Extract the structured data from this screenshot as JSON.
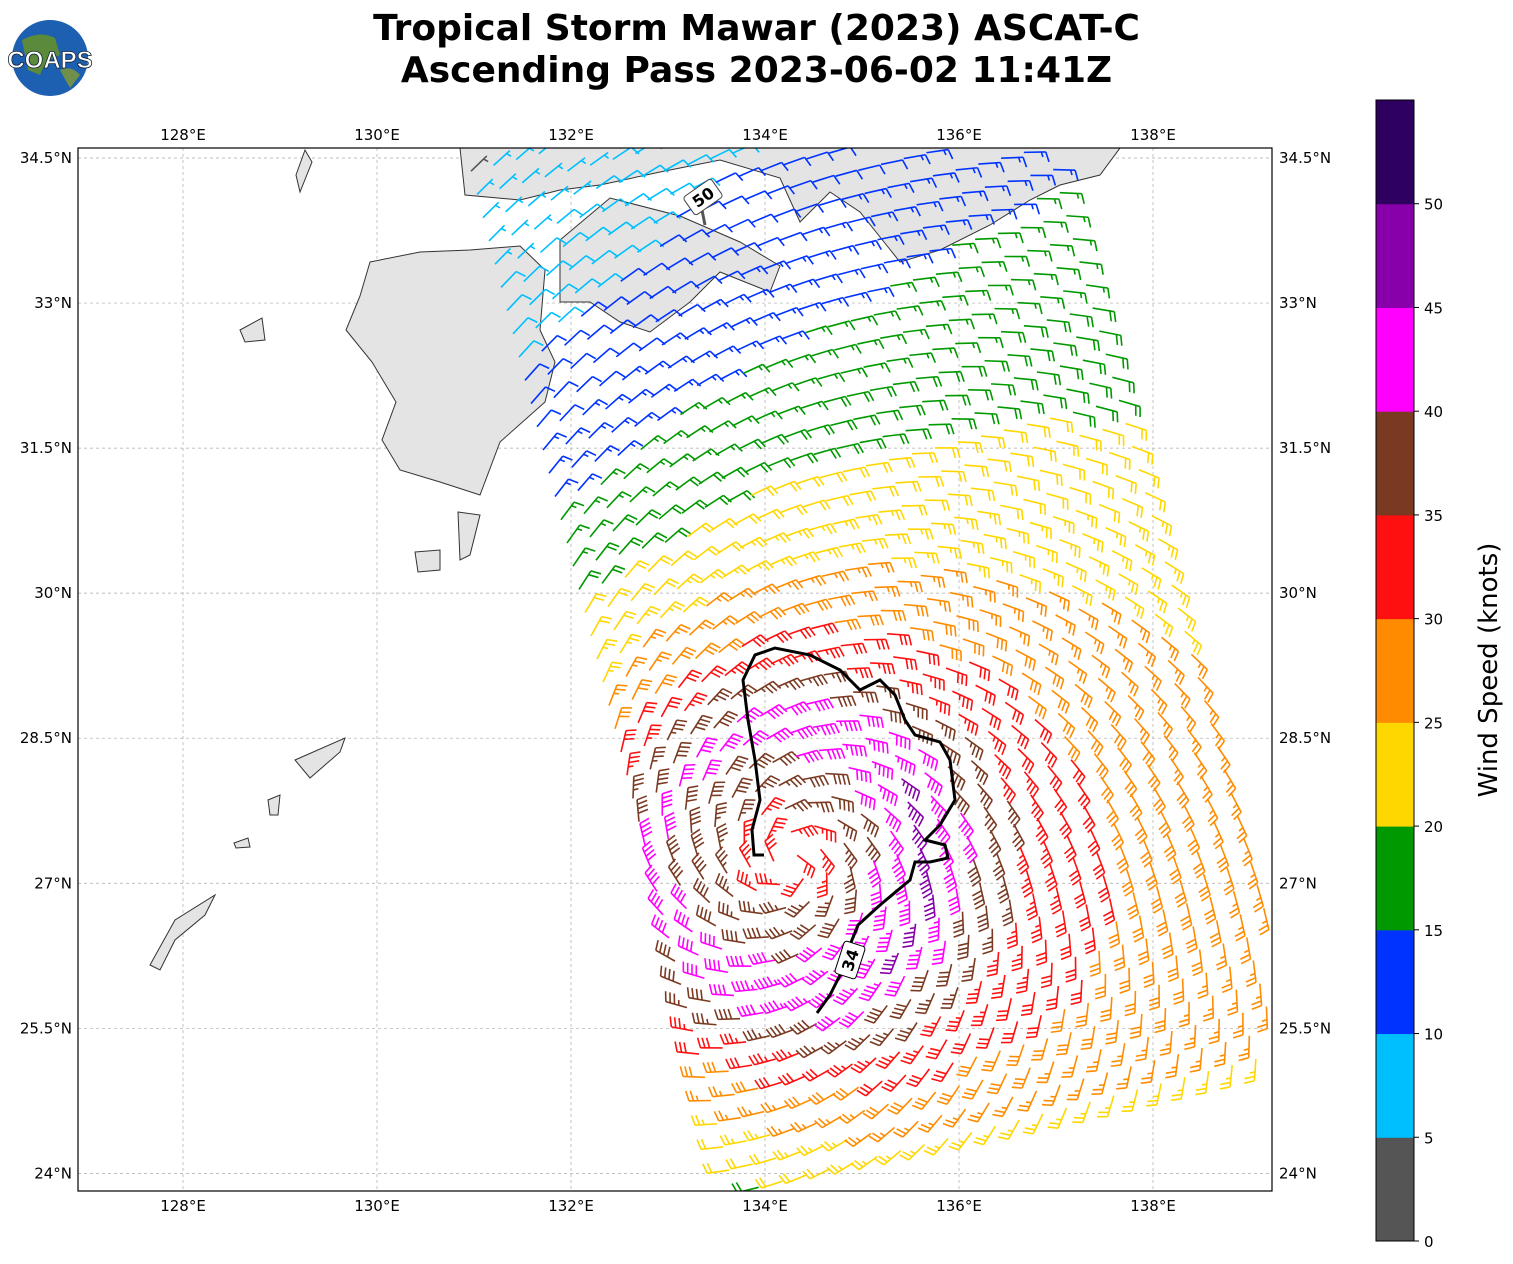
{
  "title": {
    "line1": "Tropical Storm Mawar (2023) ASCAT-C",
    "line2": "Ascending Pass 2023-06-02 11:41Z"
  },
  "logo": {
    "text": "COAPS"
  },
  "map": {
    "lon_ticks": [
      "128°E",
      "130°E",
      "132°E",
      "134°E",
      "136°E",
      "138°E"
    ],
    "lat_ticks": [
      "34.5°N",
      "33°N",
      "31.5°N",
      "30°N",
      "28.5°N",
      "27°N",
      "25.5°N",
      "24°N"
    ],
    "contours": [
      {
        "label": "34"
      },
      {
        "label": "50"
      }
    ],
    "land_color": "#e6e6e6",
    "coast_color": "#333333"
  },
  "colorbar": {
    "label": "Wind Speed (knots)",
    "ticks": [
      "0",
      "5",
      "10",
      "15",
      "20",
      "25",
      "30",
      "35",
      "40",
      "45",
      "50"
    ],
    "colors": [
      "#555555",
      "#00bfff",
      "#0033ff",
      "#009900",
      "#ffd700",
      "#ff8c00",
      "#ff1010",
      "#7a3a22",
      "#ff00ff",
      "#8800aa",
      "#2e0060"
    ]
  }
}
